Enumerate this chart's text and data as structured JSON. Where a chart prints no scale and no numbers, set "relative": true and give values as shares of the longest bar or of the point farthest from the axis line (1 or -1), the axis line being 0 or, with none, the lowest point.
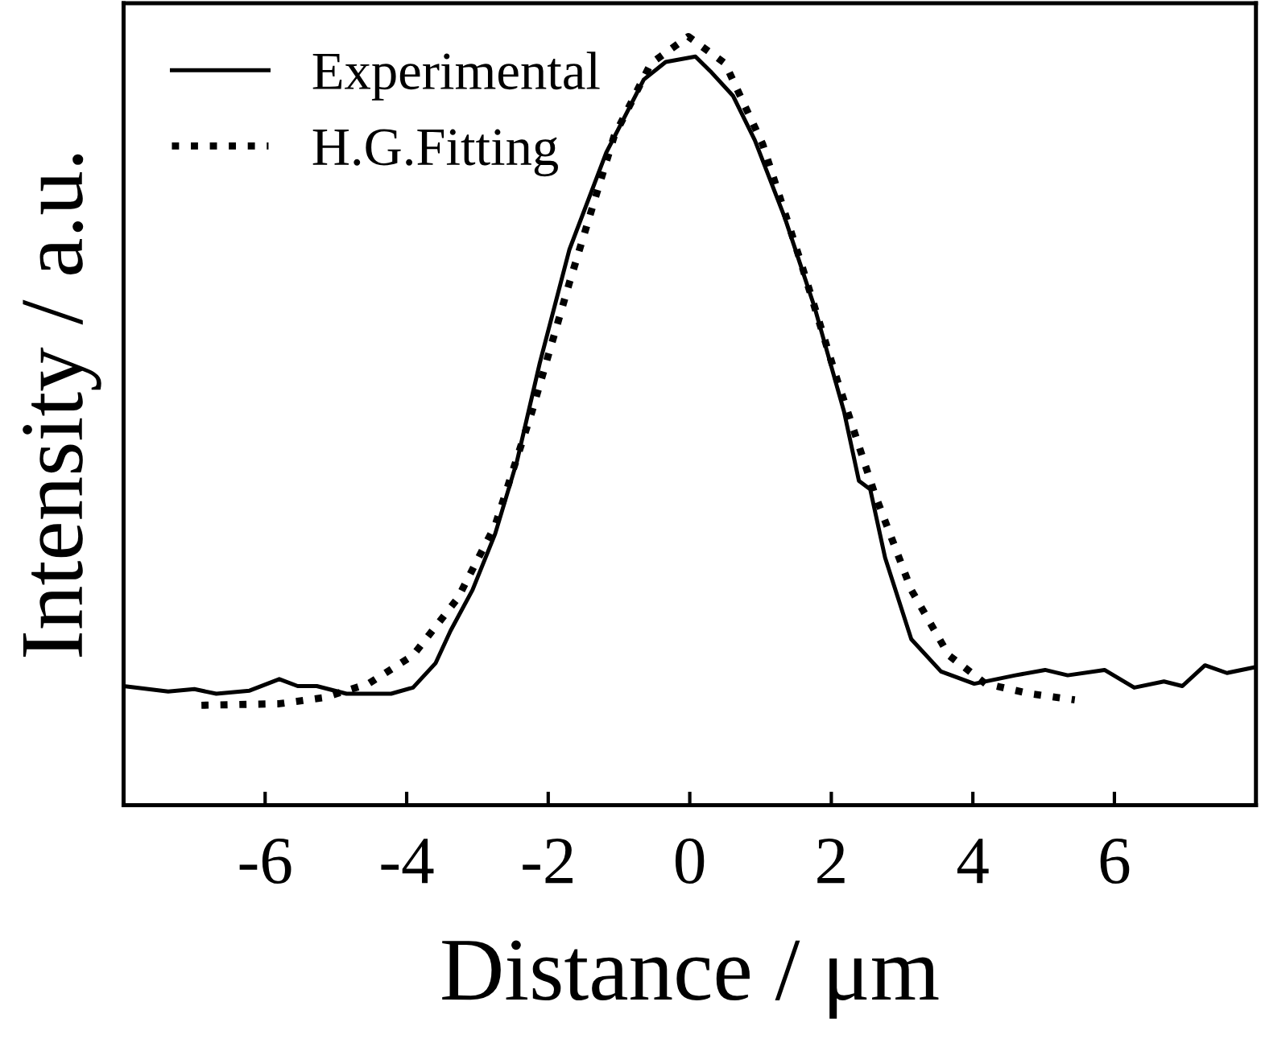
{
  "chart_data": {
    "type": "line",
    "xlabel": "Distance / μm",
    "ylabel": "Intensity / a.u.",
    "relative": true,
    "xlim": [
      -8,
      8
    ],
    "xticks": [
      -6,
      -4,
      -2,
      0,
      2,
      4,
      6
    ],
    "legend": "top left",
    "grid": false,
    "series": [
      {
        "name": "Experimental",
        "color": "#000000",
        "line_style": "solid",
        "x": [
          -8.0,
          -7.37,
          -7.0,
          -6.69,
          -6.22,
          -5.8,
          -5.54,
          -5.27,
          -4.85,
          -4.22,
          -3.91,
          -3.59,
          -3.38,
          -3.07,
          -2.75,
          -2.44,
          -2.12,
          -1.7,
          -1.18,
          -0.65,
          -0.34,
          0.08,
          0.29,
          0.61,
          0.92,
          1.34,
          1.76,
          2.18,
          2.39,
          2.55,
          2.76,
          3.13,
          3.55,
          4.02,
          4.6,
          5.02,
          5.34,
          5.86,
          6.28,
          6.7,
          6.96,
          7.28,
          7.59,
          7.96
        ],
        "values": [
          0.155,
          0.148,
          0.151,
          0.145,
          0.149,
          0.164,
          0.155,
          0.155,
          0.145,
          0.145,
          0.153,
          0.185,
          0.227,
          0.28,
          0.353,
          0.448,
          0.575,
          0.723,
          0.849,
          0.944,
          0.967,
          0.974,
          0.955,
          0.923,
          0.865,
          0.765,
          0.649,
          0.512,
          0.422,
          0.411,
          0.322,
          0.216,
          0.174,
          0.158,
          0.169,
          0.176,
          0.169,
          0.176,
          0.153,
          0.161,
          0.155,
          0.182,
          0.172,
          0.179
        ]
      },
      {
        "name": "H.G.Fitting",
        "color": "#000000",
        "line_style": "dotted",
        "x": [
          -6.9,
          -5.8,
          -5.17,
          -4.54,
          -3.91,
          -3.28,
          -2.75,
          -2.23,
          -1.7,
          -1.07,
          -0.55,
          -0.02,
          0.5,
          1.03,
          1.55,
          2.08,
          2.61,
          3.13,
          3.66,
          4.18,
          4.81,
          5.44
        ],
        "values": [
          0.13,
          0.132,
          0.14,
          0.158,
          0.195,
          0.269,
          0.364,
          0.512,
          0.68,
          0.87,
          0.965,
          1.0,
          0.965,
          0.86,
          0.712,
          0.554,
          0.406,
          0.28,
          0.195,
          0.158,
          0.145,
          0.137
        ]
      }
    ]
  }
}
